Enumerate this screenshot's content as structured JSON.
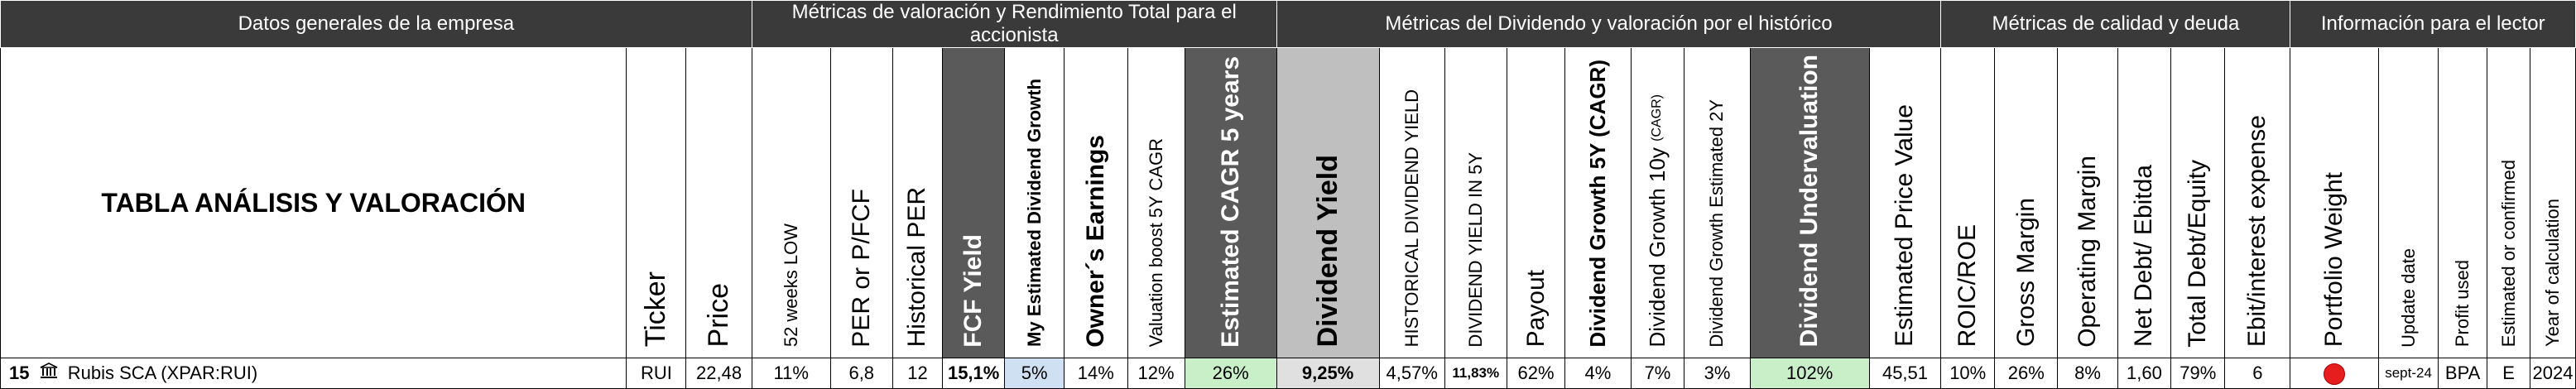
{
  "groups": {
    "g1": "Datos generales de la empresa",
    "g2": "Métricas de valoración y Rendimiento Total para el accionista",
    "g3": "Métricas del Dividendo y valoración por el histórico",
    "g4": "Métricas de calidad y deuda",
    "g5": "Información para el lector"
  },
  "title": "TABLA ANÁLISIS Y VALORACIÓN",
  "headers": {
    "ticker": "Ticker",
    "price": "Price",
    "low52": "52 weeks LOW",
    "per": "PER or P/FCF",
    "hper": "Historical PER",
    "fcf": "FCF Yield",
    "mydiv": "My Estimated Dividend Growth",
    "owner": "Owner´s Earnings",
    "vboost": "Valuation boost 5Y CAGR",
    "cagr5": "Estimated CAGR 5 years",
    "divy": "Dividend Yield",
    "histdy": "HISTORICAL DIVIDEND YIELD",
    "dy5y": "DIVIDEND YIELD IN 5Y",
    "payout": "Payout",
    "dg5": "Dividend Growth 5Y (CAGR)",
    "dg10": "Dividend Growth 10y",
    "dg10small": "(CAGR)",
    "dg2": "Dividend Growth Estimated 2Y",
    "under": "Dividend Undervaluation",
    "estprice": "Estimated Price Value",
    "roic": "ROIC/ROE",
    "gross": "Gross Margin",
    "opm": "Operating Margin",
    "netdebt": "Net Debt/ Ebitda",
    "tde": "Total Debt/Equity",
    "ebit": "Ebit/interest expense",
    "weight": "Portfolio Weight",
    "upd": "Update date",
    "profit": "Profit used",
    "estconf": "Estimated or confirmed",
    "year": "Year of calculation"
  },
  "row": {
    "num": "15",
    "name": "Rubis SCA (XPAR:RUI)",
    "ticker": "RUI",
    "price": "22,48",
    "low52": "11%",
    "per": "6,8",
    "hper": "12",
    "fcf": "15,1%",
    "mydiv": "5%",
    "owner": "14%",
    "vboost": "12%",
    "cagr5": "26%",
    "divy": "9,25%",
    "histdy": "4,57%",
    "dy5y": "11,83%",
    "payout": "62%",
    "dg5": "4%",
    "dg10": "7%",
    "dg2": "3%",
    "under": "102%",
    "estprice": "45,51",
    "roic": "10%",
    "gross": "26%",
    "opm": "8%",
    "netdebt": "1,60",
    "tde": "79%",
    "ebit": "6",
    "upd": "sept-24",
    "profit": "BPA",
    "estconf": "E",
    "year": "2024"
  },
  "colors": {
    "weight_dot": "#e61e1e",
    "header_dark": "#3a3a3a",
    "green": "#c9efc9",
    "blue": "#cfe0f3"
  },
  "icons": {
    "company": "bank-icon",
    "weight": "red-dot-icon"
  }
}
